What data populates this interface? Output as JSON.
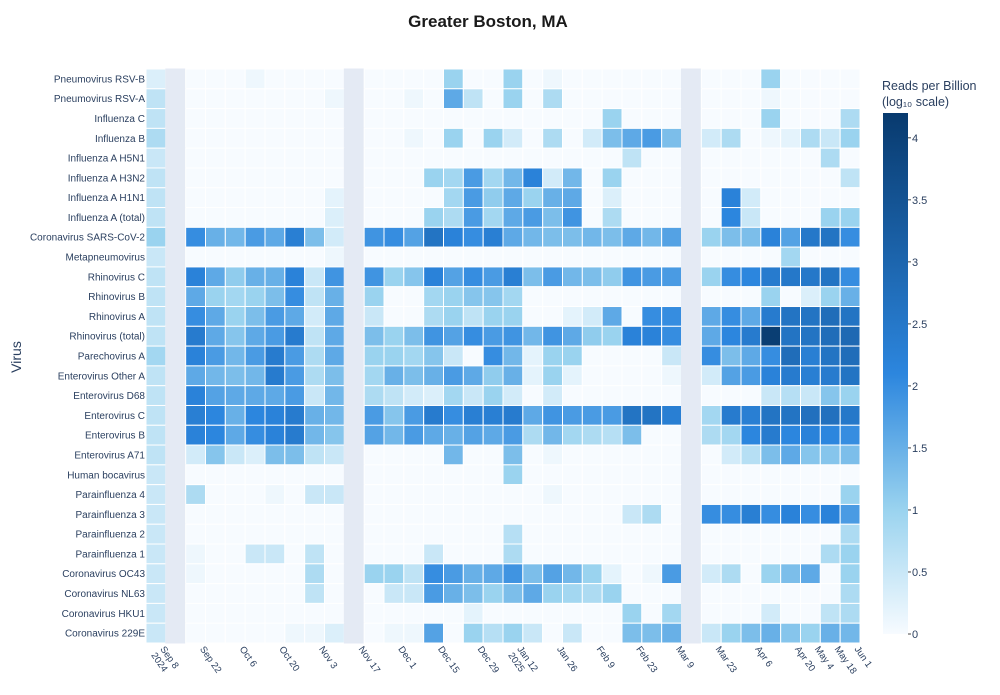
{
  "chart_data": {
    "type": "heatmap",
    "title": "Greater Boston, MA",
    "ylabel": "Virus",
    "colorbar": {
      "title_line1": "Reads per Billion",
      "title_line2": "(log₁₀ scale)",
      "range": [
        0,
        4.2
      ],
      "ticks": [
        "0",
        "0.5",
        "1",
        "1.5",
        "2",
        "2.5",
        "3",
        "3.5",
        "4"
      ],
      "colors": [
        "#f7fbff",
        "#9ad3ef",
        "#2c86de",
        "#083a6e"
      ]
    },
    "x_tick_labels": [
      "Sep 8\n2024",
      "Sep 22",
      "Oct 6",
      "Oct 20",
      "Nov 3",
      "Nov 17",
      "Dec 1",
      "Dec 15",
      "Dec 29",
      "Jan 12\n2025",
      "Jan 26",
      "Feb 9",
      "Feb 23",
      "Mar 9",
      "Mar 23",
      "Apr 6",
      "Apr 20",
      "May 4",
      "May 18",
      "Jun 1"
    ],
    "rows": [
      "Pneumovirus RSV-B",
      "Pneumovirus RSV-A",
      "Influenza C",
      "Influenza B",
      "Influenza A H5N1",
      "Influenza A H3N2",
      "Influenza A H1N1",
      "Influenza A (total)",
      "Coronavirus SARS-CoV-2",
      "Metapneumovirus",
      "Rhinovirus C",
      "Rhinovirus B",
      "Rhinovirus A",
      "Rhinovirus (total)",
      "Parechovirus A",
      "Enterovirus Other A",
      "Enterovirus D68",
      "Enterovirus C",
      "Enterovirus B",
      "Enterovirus A71",
      "Human bocavirus",
      "Parainfluenza 4",
      "Parainfluenza 3",
      "Parainfluenza 2",
      "Parainfluenza 1",
      "Coronavirus OC43",
      "Coronavirus NL63",
      "Coronavirus HKU1",
      "Coronavirus 229E"
    ],
    "columns_note": "36 sampled weeks (Sep 2024 – Jun 2025); gap columns at Sep 8, Dec 1 and Apr 6",
    "column_groups": [
      1,
      10,
      1,
      16,
      1,
      7
    ],
    "values": [
      [
        0.3,
        null,
        0,
        0,
        0,
        0.1,
        0,
        0,
        0,
        0,
        null,
        0,
        0,
        0,
        0,
        1.0,
        0,
        0,
        1.0,
        0,
        0.1,
        0,
        0,
        0,
        0,
        0,
        0,
        null,
        0,
        0,
        0,
        1.0,
        0,
        0,
        0,
        0
      ],
      [
        0.6,
        null,
        0,
        0,
        0,
        0,
        0,
        0,
        0,
        0.1,
        null,
        0,
        0,
        0.1,
        0,
        1.6,
        0.6,
        0,
        1.0,
        0,
        0.8,
        0,
        0,
        0,
        0,
        0,
        0,
        null,
        0,
        0,
        0,
        0.1,
        0,
        0,
        0,
        0
      ],
      [
        0.6,
        null,
        0,
        0,
        0,
        0,
        0,
        0,
        0,
        0,
        null,
        0,
        0,
        0,
        0,
        0,
        0,
        0,
        0,
        0,
        0,
        0,
        0,
        1.0,
        0,
        0,
        0,
        null,
        0,
        0,
        0,
        1.0,
        0,
        0,
        0,
        0.8
      ],
      [
        0.8,
        null,
        0,
        0,
        0,
        0,
        0,
        0,
        0,
        0,
        null,
        0,
        0,
        0.1,
        0,
        1.0,
        0,
        1.0,
        0.4,
        0,
        0.8,
        0,
        0.4,
        1.3,
        1.6,
        1.8,
        1.3,
        null,
        0.4,
        0.8,
        0,
        0.1,
        0.2,
        0.8,
        0.5,
        1.0
      ],
      [
        0.5,
        null,
        0,
        0,
        0,
        0,
        0,
        0,
        0,
        0,
        null,
        0,
        0,
        0,
        0,
        0,
        0,
        0,
        0,
        0,
        0,
        0,
        0,
        0,
        0.6,
        0,
        0,
        null,
        0,
        0,
        0,
        0,
        0,
        0,
        0.8,
        0
      ],
      [
        0.6,
        null,
        0,
        0,
        0,
        0,
        0,
        0,
        0,
        0,
        null,
        0,
        0,
        0,
        1.0,
        0.9,
        1.8,
        0.9,
        1.4,
        2.2,
        0.4,
        1.4,
        0,
        1.0,
        0,
        0,
        0,
        null,
        0,
        0,
        0,
        0,
        0,
        0,
        0,
        0.6
      ],
      [
        0.6,
        null,
        0,
        0,
        0,
        0,
        0,
        0,
        0,
        0.2,
        null,
        0,
        0,
        0,
        0,
        0.9,
        1.8,
        1.1,
        1.6,
        1.0,
        1.5,
        1.6,
        0,
        0.3,
        0,
        0,
        0,
        null,
        0,
        2.2,
        0.4,
        0,
        0,
        0,
        0,
        0
      ],
      [
        0.6,
        null,
        0,
        0,
        0,
        0,
        0,
        0,
        0,
        0.3,
        null,
        0,
        0,
        0,
        1.0,
        0.8,
        1.8,
        0.9,
        1.6,
        1.8,
        1.3,
        1.9,
        0,
        0.8,
        0,
        0,
        0,
        null,
        0,
        2.1,
        0.5,
        0,
        0,
        0,
        1.0,
        1.0
      ],
      [
        1.0,
        null,
        2.0,
        1.5,
        1.4,
        1.8,
        1.6,
        2.3,
        1.3,
        0.4,
        null,
        1.9,
        2.0,
        1.7,
        2.6,
        2.2,
        2.0,
        2.3,
        1.6,
        1.4,
        1.3,
        1.3,
        1.4,
        1.3,
        1.6,
        1.4,
        1.7,
        null,
        1.0,
        1.3,
        1.3,
        2.2,
        1.7,
        2.5,
        2.6,
        2.0
      ],
      [
        0.5,
        null,
        0,
        0,
        0,
        0,
        0,
        0,
        0,
        0.1,
        null,
        0,
        0,
        0,
        0,
        0,
        0,
        0,
        0,
        0,
        0,
        0,
        0,
        0,
        0,
        0,
        0,
        null,
        0,
        0,
        0,
        0,
        0.9,
        0,
        0,
        0
      ],
      [
        0.6,
        null,
        2.2,
        1.6,
        1.1,
        1.5,
        1.5,
        2.2,
        0.5,
        1.9,
        null,
        1.9,
        1.0,
        1.2,
        2.2,
        1.7,
        2.0,
        1.8,
        2.3,
        1.3,
        1.8,
        1.4,
        1.3,
        1.1,
        1.9,
        1.8,
        1.8,
        null,
        1.0,
        2.0,
        2.1,
        2.4,
        2.5,
        2.5,
        2.6,
        2.0
      ],
      [
        0.6,
        null,
        1.6,
        1.0,
        0.9,
        1.0,
        1.3,
        2.0,
        0.6,
        1.5,
        null,
        1.0,
        0,
        0,
        0.9,
        1.0,
        1.2,
        1.2,
        0.9,
        0,
        0,
        0,
        0,
        0,
        0,
        0,
        0,
        null,
        0,
        0,
        0,
        1.0,
        0,
        0.3,
        1.0,
        1.5
      ],
      [
        0.6,
        null,
        2.0,
        1.6,
        1.0,
        1.3,
        1.8,
        1.6,
        0.4,
        1.6,
        null,
        0.5,
        0,
        0,
        0.8,
        1.0,
        0.6,
        1.0,
        1.0,
        0,
        0,
        0.2,
        0.4,
        1.6,
        0,
        2.0,
        2.0,
        null,
        1.6,
        2.0,
        1.6,
        2.4,
        2.6,
        2.6,
        2.8,
        2.6
      ],
      [
        0.6,
        null,
        2.4,
        1.6,
        1.2,
        1.6,
        1.8,
        2.4,
        0.6,
        1.6,
        null,
        1.3,
        1.0,
        1.3,
        1.9,
        1.7,
        2.0,
        1.8,
        1.9,
        1.4,
        1.9,
        1.6,
        1.1,
        1.0,
        2.2,
        2.2,
        2.0,
        null,
        1.6,
        2.1,
        2.4,
        4.1,
        2.6,
        2.6,
        2.8,
        2.9
      ],
      [
        0.9,
        null,
        2.2,
        1.8,
        1.4,
        1.8,
        2.4,
        1.8,
        0.8,
        1.6,
        null,
        1.0,
        1.0,
        0.9,
        1.2,
        0.5,
        0,
        2.0,
        1.4,
        0.2,
        1.0,
        1.0,
        0,
        0,
        0,
        0,
        0.5,
        null,
        2.0,
        1.3,
        1.6,
        2.0,
        2.8,
        2.3,
        2.6,
        2.8
      ],
      [
        0.6,
        null,
        1.6,
        1.4,
        1.3,
        1.4,
        2.4,
        1.8,
        0.8,
        1.3,
        null,
        0.9,
        1.5,
        1.3,
        1.5,
        1.8,
        1.6,
        1.1,
        1.5,
        0.2,
        1.0,
        0.2,
        0,
        0,
        0,
        0,
        0.1,
        null,
        0.4,
        1.7,
        1.8,
        2.2,
        2.4,
        2.3,
        2.4,
        2.6
      ],
      [
        0.6,
        null,
        2.2,
        1.7,
        1.6,
        1.6,
        1.6,
        1.8,
        0.5,
        1.4,
        null,
        0.8,
        0.6,
        0.4,
        0.3,
        0.9,
        0.5,
        1.0,
        0.4,
        0,
        0.4,
        0,
        0,
        0,
        0,
        0,
        0,
        null,
        0,
        0,
        0,
        0.5,
        0.7,
        0.5,
        1.2,
        1.0
      ],
      [
        0.6,
        null,
        2.3,
        2.1,
        1.5,
        2.1,
        2.2,
        2.4,
        1.5,
        1.4,
        null,
        1.8,
        1.2,
        1.8,
        2.4,
        2.0,
        2.3,
        2.3,
        2.4,
        1.6,
        1.9,
        1.8,
        1.8,
        1.8,
        2.6,
        2.6,
        2.3,
        null,
        0.9,
        2.4,
        2.3,
        2.6,
        2.6,
        2.7,
        2.7,
        2.5
      ],
      [
        0.6,
        null,
        2.2,
        2.1,
        1.6,
        2.0,
        2.2,
        2.4,
        1.4,
        1.2,
        null,
        1.7,
        1.4,
        1.8,
        1.6,
        1.5,
        1.7,
        1.6,
        1.8,
        0.8,
        1.4,
        0.9,
        0.8,
        0.7,
        1.3,
        0,
        0,
        null,
        0.8,
        0.9,
        2.1,
        2.4,
        2.1,
        2.2,
        2.1,
        2.0
      ],
      [
        0.6,
        null,
        0.4,
        1.2,
        0.5,
        0.3,
        1.3,
        1.3,
        0.6,
        0.5,
        null,
        0,
        0,
        0,
        0,
        1.4,
        0,
        0,
        1.3,
        0,
        0.1,
        0,
        0,
        0,
        0,
        0,
        0,
        null,
        0,
        0.4,
        0.7,
        1.3,
        1.6,
        1.2,
        1.2,
        1.3
      ],
      [
        0.5,
        null,
        0,
        0,
        0,
        0,
        0,
        0,
        0,
        0,
        null,
        0,
        0,
        0,
        0,
        0,
        0,
        0,
        1.0,
        0,
        0,
        0,
        0,
        0,
        0,
        0,
        0,
        null,
        0,
        0,
        0,
        0,
        0,
        0,
        0,
        0
      ],
      [
        0.5,
        null,
        0.8,
        0,
        0,
        0,
        0.1,
        0,
        0.5,
        0.5,
        null,
        0,
        0,
        0,
        0,
        0,
        0,
        0,
        0,
        0,
        0.1,
        0,
        0,
        0,
        0,
        0,
        0,
        null,
        0,
        0,
        0,
        0,
        0,
        0,
        0,
        1.0
      ],
      [
        0.5,
        null,
        0,
        0,
        0,
        0,
        0,
        0,
        0,
        0,
        null,
        0,
        0,
        0,
        0,
        0,
        0,
        0,
        0,
        0,
        0,
        0,
        0,
        0,
        0.5,
        0.8,
        0,
        null,
        2.0,
        2.0,
        2.3,
        2.0,
        2.2,
        2.0,
        2.2,
        1.8
      ],
      [
        0.5,
        null,
        0,
        0,
        0,
        0,
        0,
        0,
        0,
        0,
        null,
        0,
        0,
        0,
        0,
        0,
        0,
        0,
        0.7,
        0,
        0,
        0,
        0,
        0,
        0,
        0,
        0,
        null,
        0,
        0,
        0,
        0,
        0,
        0,
        0,
        0.8
      ],
      [
        0.5,
        null,
        0.1,
        0,
        0,
        0.5,
        0.5,
        0,
        0.6,
        0,
        null,
        0,
        0,
        0,
        0.5,
        0,
        0,
        0,
        0.8,
        0,
        0,
        0,
        0,
        0,
        0,
        0,
        0,
        null,
        0,
        0,
        0,
        0,
        0,
        0,
        0.8,
        1.0
      ],
      [
        0.5,
        null,
        0.1,
        0,
        0,
        0,
        0,
        0,
        0.8,
        0,
        null,
        1.0,
        1.0,
        0.6,
        2.0,
        1.8,
        1.5,
        1.6,
        1.9,
        1.3,
        1.7,
        1.4,
        1.0,
        0.2,
        0,
        0.1,
        1.8,
        null,
        0.4,
        0.8,
        0,
        1.0,
        1.3,
        1.6,
        0,
        1.0
      ],
      [
        0.5,
        null,
        0,
        0,
        0,
        0,
        0,
        0,
        0.6,
        0,
        null,
        0,
        0.5,
        0.5,
        1.8,
        1.5,
        1.3,
        1.0,
        1.3,
        1.6,
        1.0,
        0.9,
        0.8,
        1.0,
        0,
        0,
        0,
        null,
        0,
        0,
        0,
        0,
        0,
        0,
        0,
        0.8
      ],
      [
        0.5,
        null,
        0,
        0,
        0,
        0,
        0,
        0,
        0,
        0,
        null,
        0,
        0,
        0,
        0,
        0,
        0.2,
        0,
        0,
        0,
        0,
        0,
        0,
        0,
        1.0,
        0,
        0.9,
        null,
        0,
        0,
        0,
        0.4,
        0,
        0,
        0.6,
        0.8
      ],
      [
        0.5,
        null,
        0,
        0,
        0,
        0,
        0,
        0.1,
        0.1,
        0.3,
        null,
        0,
        0.1,
        0.1,
        1.7,
        0,
        1.0,
        0.7,
        1.0,
        0.5,
        0,
        0.5,
        0,
        0,
        1.3,
        1.3,
        1.5,
        null,
        0.5,
        1.0,
        1.3,
        1.5,
        1.2,
        1.0,
        1.5,
        1.4
      ]
    ]
  }
}
